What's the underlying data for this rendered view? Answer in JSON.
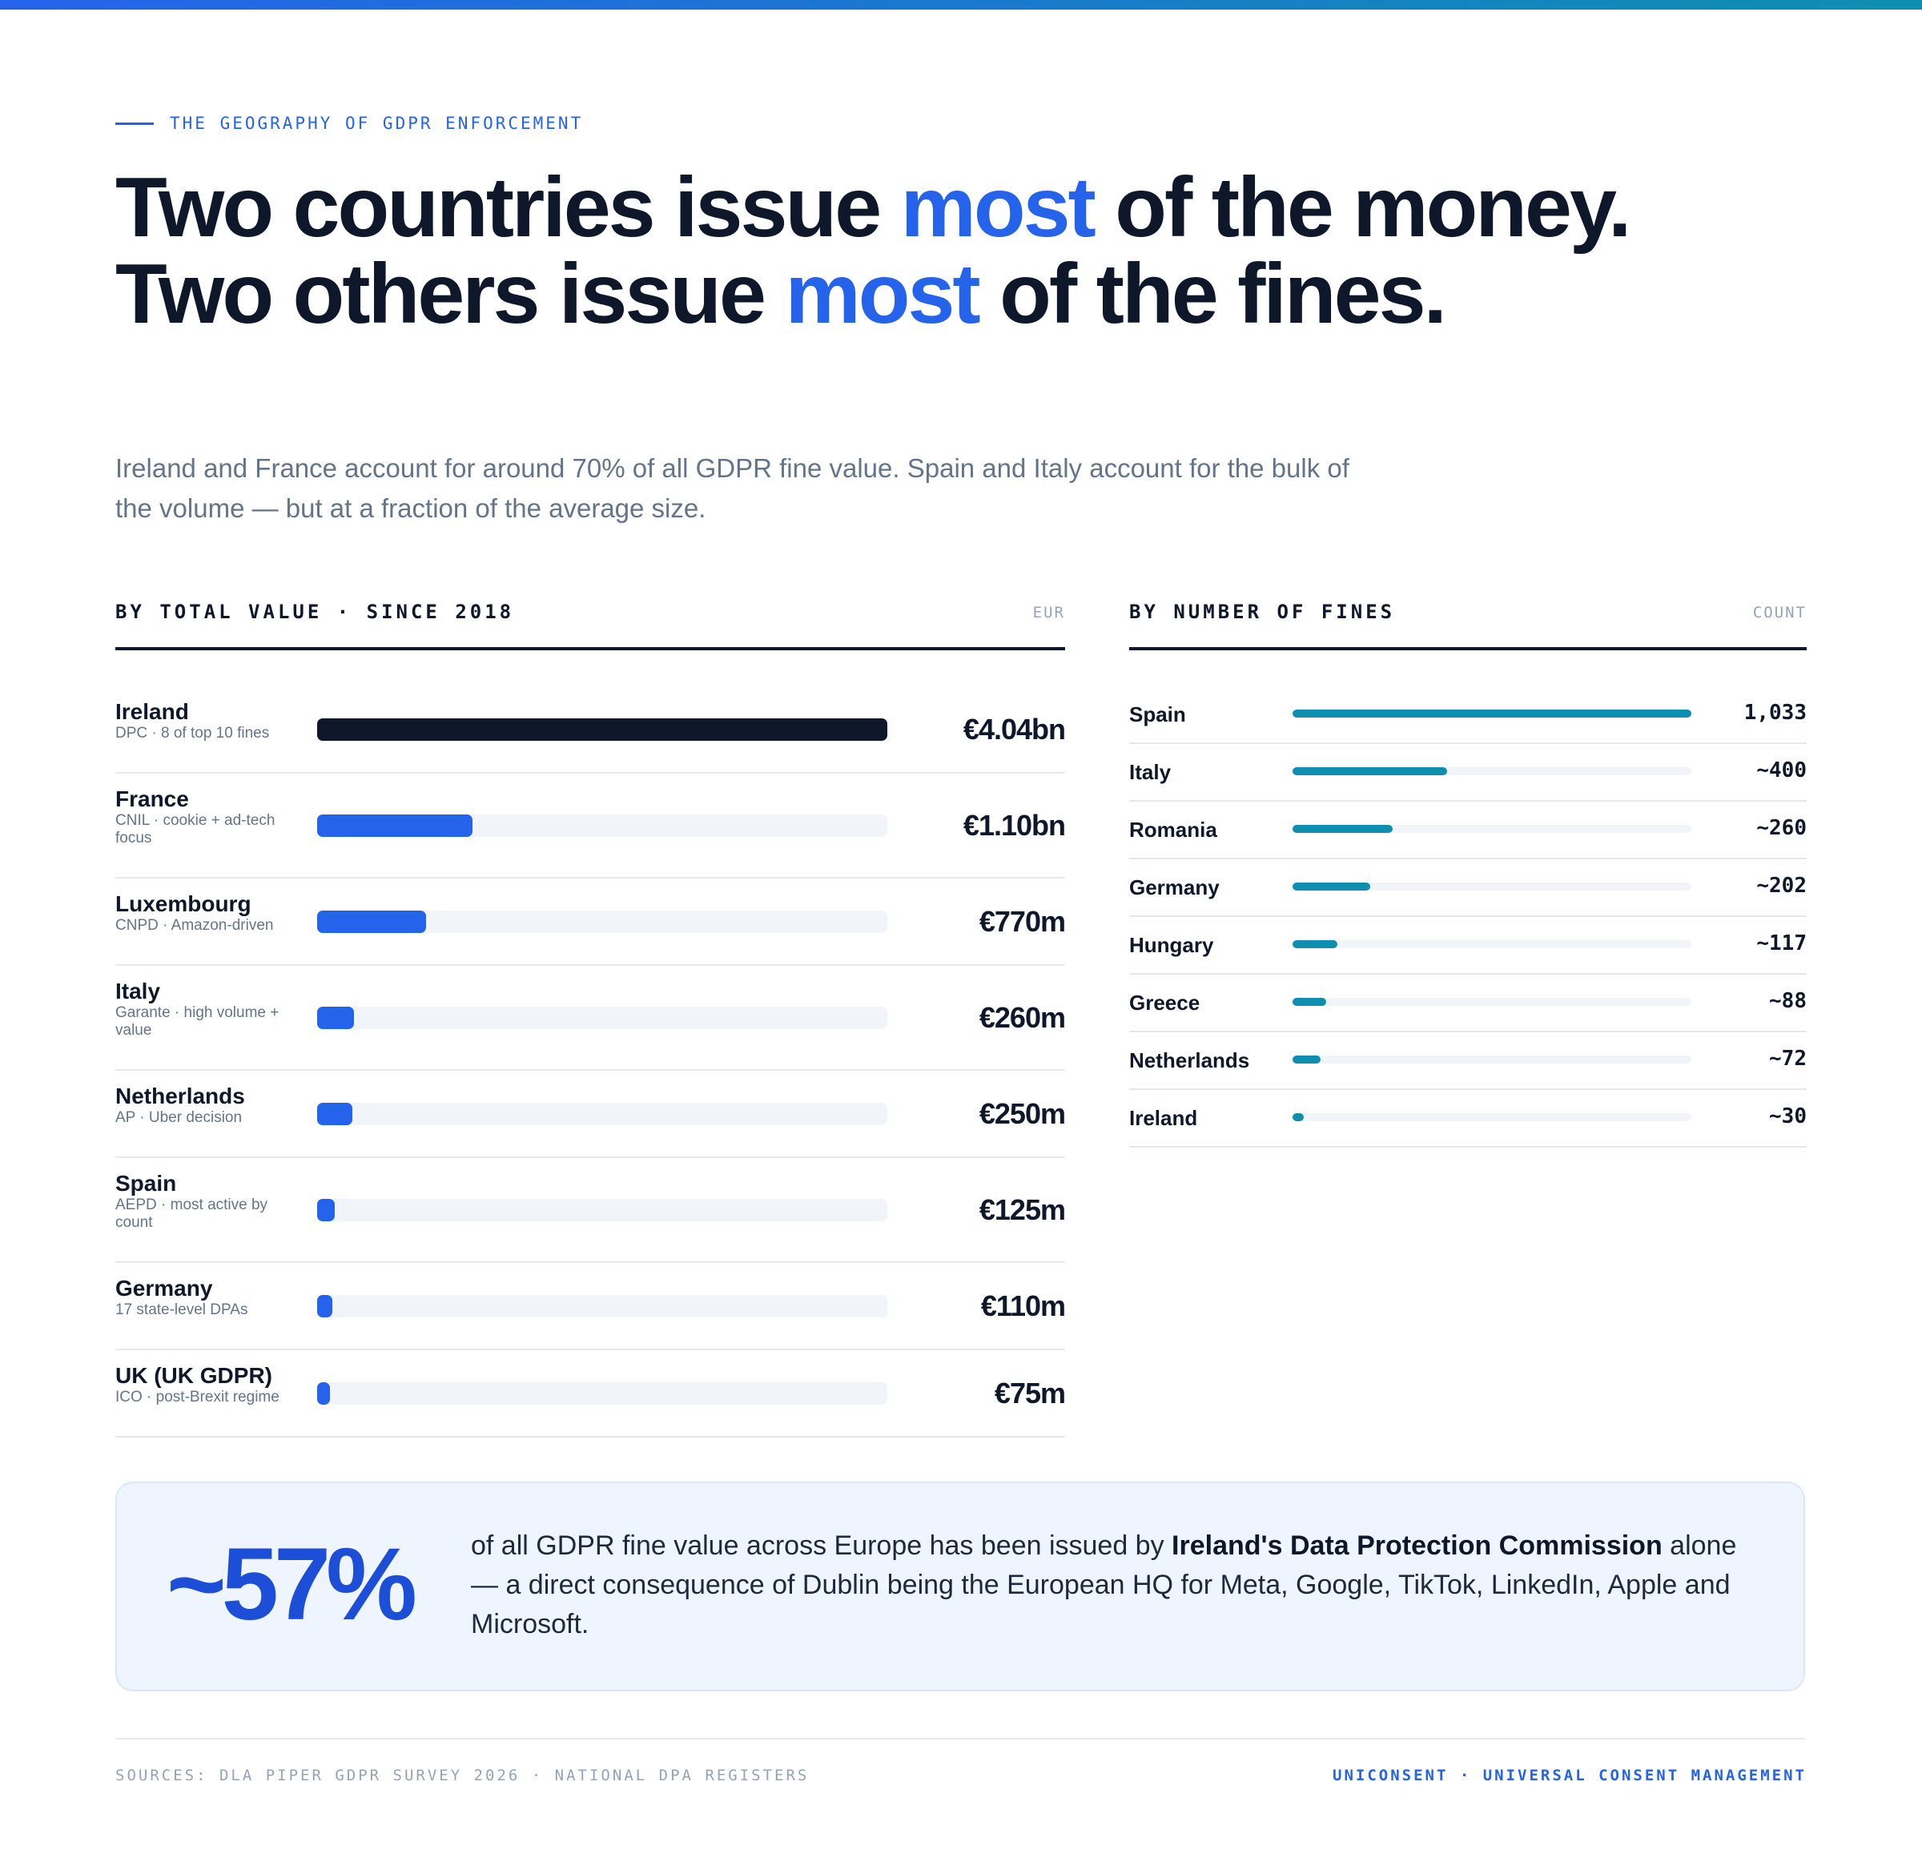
{
  "header": {
    "eyebrow": "THE GEOGRAPHY OF GDPR ENFORCEMENT",
    "title": {
      "l1a": "Two countries issue ",
      "l1b": "most",
      "l1c": " of the money.",
      "l2a": "Two others issue ",
      "l2b": "most",
      "l2c": " of the fines."
    },
    "subtitle": "Ireland and France account for around 70% of all GDPR fine value. Spain and Italy account for the bulk of the volume — but at a fraction of the average size."
  },
  "colors": {
    "accent": "#2563eb",
    "top_bar": "#0f172a",
    "count_bar": "#0e8fb0",
    "callout_number": "#1d4ed8"
  },
  "value_panel": {
    "title": "BY TOTAL VALUE · SINCE 2018",
    "unit": "EUR"
  },
  "count_panel": {
    "title": "BY NUMBER OF FINES",
    "unit": "COUNT"
  },
  "chart_data": [
    {
      "type": "bar",
      "orientation": "horizontal",
      "title": "BY TOTAL VALUE · SINCE 2018",
      "unit": "EUR",
      "categories": [
        "Ireland",
        "France",
        "Luxembourg",
        "Italy",
        "Netherlands",
        "Spain",
        "Germany",
        "UK (UK GDPR)"
      ],
      "notes": [
        "DPC · 8 of top 10 fines",
        "CNIL · cookie + ad-tech focus",
        "CNPD · Amazon-driven",
        "Garante · high volume + value",
        "AP · Uber decision",
        "AEPD · most active by count",
        "17 state-level DPAs",
        "ICO · post-Brexit regime"
      ],
      "values": [
        4040000000,
        1100000000,
        770000000,
        260000000,
        250000000,
        125000000,
        110000000,
        75000000
      ],
      "labels": [
        "€4.04bn",
        "€1.10bn",
        "€770m",
        "€260m",
        "€250m",
        "€125m",
        "€110m",
        "€75m"
      ],
      "xlim": [
        0,
        4040000000
      ]
    },
    {
      "type": "bar",
      "orientation": "horizontal",
      "title": "BY NUMBER OF FINES",
      "unit": "COUNT",
      "categories": [
        "Spain",
        "Italy",
        "Romania",
        "Germany",
        "Hungary",
        "Greece",
        "Netherlands",
        "Ireland"
      ],
      "values": [
        1033,
        400,
        260,
        202,
        117,
        88,
        72,
        30
      ],
      "labels": [
        "1,033",
        "~400",
        "~260",
        "~202",
        "~117",
        "~88",
        "~72",
        "~30"
      ],
      "xlim": [
        0,
        1033
      ]
    }
  ],
  "callout": {
    "stat": "~57%",
    "text_a": "of all GDPR fine value across Europe has been issued by ",
    "text_bold": "Ireland's Data Protection Commission",
    "text_b": " alone — a direct consequence of Dublin being the European HQ for Meta, Google, TikTok, LinkedIn, Apple and Microsoft."
  },
  "footer": {
    "sources": "SOURCES: DLA PIPER GDPR SURVEY 2026 · NATIONAL DPA REGISTERS",
    "brand": "UNICONSENT · UNIVERSAL CONSENT MANAGEMENT"
  }
}
